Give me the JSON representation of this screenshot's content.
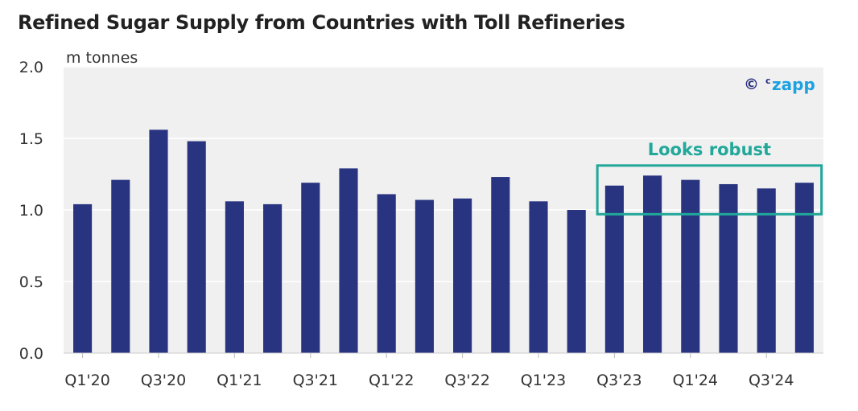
{
  "title": "Refined Sugar Supply from Countries with Toll Refineries",
  "watermark": {
    "symbol": "©",
    "superscript": "c",
    "brand": "zapp",
    "symbol_color": "#2b3380",
    "brand_color": "#1da1e0"
  },
  "colors": {
    "bar": "#283480",
    "plot_bg": "#f0f0f0",
    "grid": "#ffffff",
    "highlight": "#21a89a"
  },
  "chart_data": {
    "type": "bar",
    "title": "Refined Sugar Supply from Countries with Toll Refineries",
    "ylabel": "m tonnes",
    "xlabel": "",
    "ylim": [
      0,
      2.0
    ],
    "yticks": [
      "0.0",
      "0.5",
      "1.0",
      "1.5",
      "2.0"
    ],
    "categories": [
      "Q1'20",
      "Q2'20",
      "Q3'20",
      "Q4'20",
      "Q1'21",
      "Q2'21",
      "Q3'21",
      "Q4'21",
      "Q1'22",
      "Q2'22",
      "Q3'22",
      "Q4'22",
      "Q1'23",
      "Q2'23",
      "Q3'23",
      "Q4'23",
      "Q1'24",
      "Q2'24",
      "Q3'24",
      "Q4'24"
    ],
    "xtick_labels": [
      "Q1'20",
      "Q3'20",
      "Q1'21",
      "Q3'21",
      "Q1'22",
      "Q3'22",
      "Q1'23",
      "Q3'23",
      "Q1'24",
      "Q3'24"
    ],
    "values": [
      1.04,
      1.21,
      1.56,
      1.48,
      1.06,
      1.04,
      1.19,
      1.29,
      1.11,
      1.07,
      1.08,
      1.23,
      1.06,
      1.0,
      1.17,
      1.24,
      1.21,
      1.18,
      1.15,
      1.19
    ],
    "grid": true,
    "legend": "none",
    "annotation": {
      "text": "Looks robust",
      "x_start": "Q3'23",
      "x_end": "Q4'24",
      "y_range": [
        0.97,
        1.31
      ]
    }
  }
}
